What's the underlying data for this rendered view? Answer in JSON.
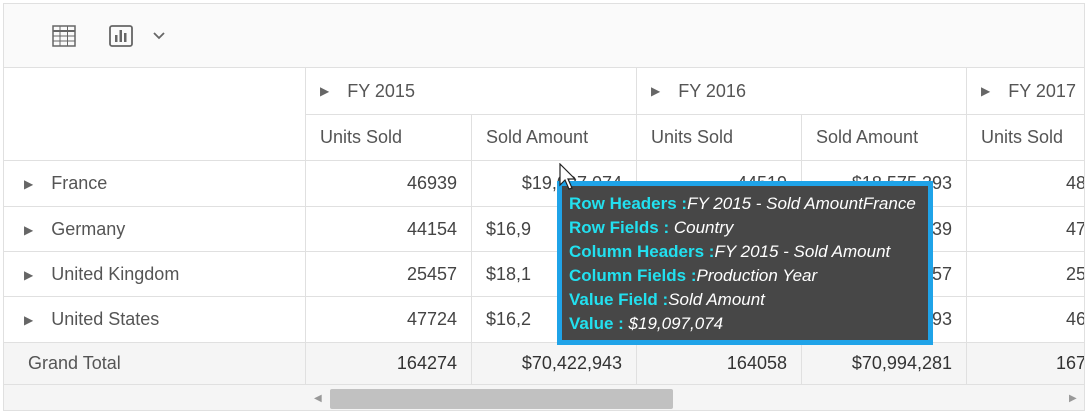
{
  "toolbar": {
    "grid_icon": "table-grid-icon",
    "chart_icon": "bar-chart-icon",
    "dropdown_icon": "chevron-down-icon"
  },
  "columns": {
    "years": [
      "FY 2015",
      "FY 2016",
      "FY 2017"
    ],
    "measures": [
      "Units Sold",
      "Sold Amount",
      "Units Sold",
      "Sold Amount",
      "Units Sold"
    ]
  },
  "rows": [
    {
      "country": "France",
      "values": [
        "46939",
        "$19,097,074",
        "44519",
        "$18,575,393",
        "48"
      ]
    },
    {
      "country": "Germany",
      "values": [
        "44154",
        "$16,9",
        "",
        "39",
        "47"
      ]
    },
    {
      "country": "United Kingdom",
      "values": [
        "25457",
        "$18,1",
        "",
        "57",
        "25"
      ]
    },
    {
      "country": "United States",
      "values": [
        "47724",
        "$16,2",
        "",
        "93",
        "46"
      ]
    }
  ],
  "grand_total": {
    "label": "Grand Total",
    "values": [
      "164274",
      "$70,422,943",
      "164058",
      "$70,994,281",
      "167"
    ]
  },
  "tooltip": {
    "row_headers_key": "Row Headers :",
    "row_headers_val": "FY 2015 - Sold AmountFrance",
    "row_fields_key": "Row Fields : ",
    "row_fields_val": "Country",
    "column_headers_key": "Column Headers :",
    "column_headers_val": "FY 2015 - Sold Amount",
    "column_fields_key": "Column Fields :",
    "column_fields_val": "Production Year",
    "value_field_key": "Value Field :",
    "value_field_val": "Sold Amount",
    "value_key": "Value : ",
    "value_val": "$19,097,074"
  },
  "colors": {
    "tooltip_border": "#1fa3e8",
    "tooltip_bg": "#474747",
    "tooltip_key": "#22e0ef"
  }
}
